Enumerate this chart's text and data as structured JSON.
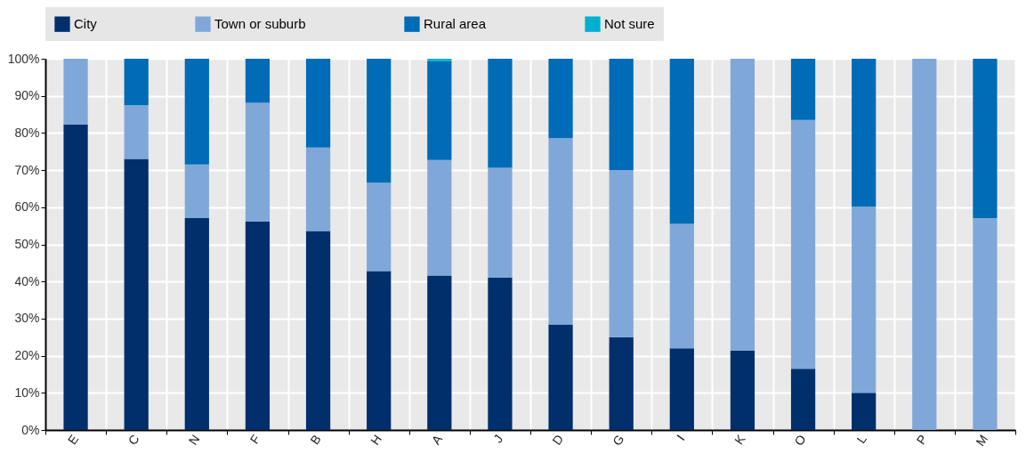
{
  "chart_data": {
    "type": "bar",
    "stacked": true,
    "categories": [
      "E",
      "C",
      "N",
      "F",
      "B",
      "H",
      "A",
      "J",
      "D",
      "G",
      "I",
      "K",
      "O",
      "L",
      "P",
      "M"
    ],
    "series": [
      {
        "name": "City",
        "color": "#002f6c",
        "values": [
          82.3,
          73.0,
          57.1,
          56.1,
          53.6,
          42.8,
          41.6,
          41.0,
          28.4,
          25.0,
          22.0,
          21.4,
          16.5,
          10.0,
          0,
          0
        ]
      },
      {
        "name": "Town or suburb",
        "color": "#7fa8d9",
        "values": [
          17.7,
          14.5,
          14.4,
          32.0,
          22.5,
          23.8,
          31.1,
          29.6,
          50.2,
          45.0,
          33.5,
          78.6,
          67.0,
          50.2,
          100,
          57.1
        ]
      },
      {
        "name": "Rural area",
        "color": "#006bb6",
        "values": [
          0,
          12.5,
          28.5,
          11.9,
          23.9,
          33.4,
          26.6,
          29.4,
          21.4,
          30.0,
          44.5,
          0,
          16.5,
          39.8,
          0,
          42.9
        ]
      },
      {
        "name": "Not sure",
        "color": "#00b0d0",
        "values": [
          0,
          0,
          0,
          0,
          0,
          0,
          0.7,
          0,
          0,
          0,
          0,
          0,
          0,
          0,
          0,
          0
        ]
      }
    ],
    "ylim": [
      0,
      100
    ],
    "yticks": [
      {
        "value": 0,
        "label": "0%"
      },
      {
        "value": 10,
        "label": "10%"
      },
      {
        "value": 20,
        "label": "20%"
      },
      {
        "value": 30,
        "label": "30%"
      },
      {
        "value": 40,
        "label": "40%"
      },
      {
        "value": 50,
        "label": "50%"
      },
      {
        "value": 60,
        "label": "60%"
      },
      {
        "value": 70,
        "label": "70%"
      },
      {
        "value": 80,
        "label": "80%"
      },
      {
        "value": 90,
        "label": "90%"
      },
      {
        "value": 100,
        "label": "100%"
      }
    ],
    "grid": true,
    "legend": "top"
  }
}
